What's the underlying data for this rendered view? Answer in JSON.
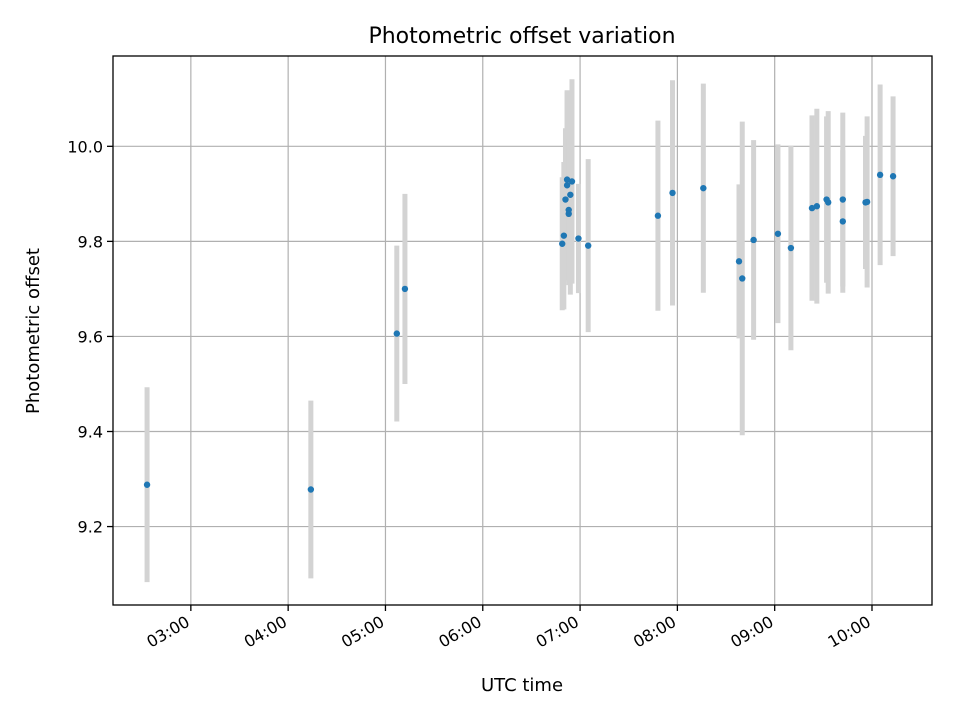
{
  "chart_data": {
    "type": "scatter",
    "title": "Photometric offset variation",
    "xlabel": "UTC time",
    "ylabel": "Photometric offset",
    "x_axis_type": "time",
    "xlim": [
      "02:12",
      "10:37"
    ],
    "ylim": [
      9.035,
      10.19
    ],
    "xticks": [
      "03:00",
      "04:00",
      "05:00",
      "06:00",
      "07:00",
      "08:00",
      "09:00",
      "10:00"
    ],
    "yticks": [
      9.2,
      9.4,
      9.6,
      9.8,
      10.0
    ],
    "ytick_labels": [
      "9.2",
      "9.4",
      "9.6",
      "9.8",
      "10.0"
    ],
    "grid": true,
    "point_color": "#1f77b4",
    "errorbar_color": "#d3d3d3",
    "points": [
      {
        "x": "02:33",
        "y": 9.288,
        "err": 0.205
      },
      {
        "x": "04:14",
        "y": 9.278,
        "err": 0.187
      },
      {
        "x": "05:07",
        "y": 9.606,
        "err": 0.185
      },
      {
        "x": "05:12",
        "y": 9.7,
        "err": 0.2
      },
      {
        "x": "06:49",
        "y": 9.795,
        "err": 0.14
      },
      {
        "x": "06:50",
        "y": 9.812,
        "err": 0.155
      },
      {
        "x": "06:51",
        "y": 9.888,
        "err": 0.15
      },
      {
        "x": "06:52",
        "y": 9.93,
        "err": 0.185
      },
      {
        "x": "06:52",
        "y": 9.918,
        "err": 0.2
      },
      {
        "x": "06:53",
        "y": 9.858,
        "err": 0.15
      },
      {
        "x": "06:53",
        "y": 9.866,
        "err": 0.15
      },
      {
        "x": "06:54",
        "y": 9.898,
        "err": 0.21
      },
      {
        "x": "06:55",
        "y": 9.926,
        "err": 0.215
      },
      {
        "x": "06:59",
        "y": 9.806,
        "err": 0.115
      },
      {
        "x": "07:05",
        "y": 9.791,
        "err": 0.182
      },
      {
        "x": "07:48",
        "y": 9.854,
        "err": 0.2
      },
      {
        "x": "07:57",
        "y": 9.902,
        "err": 0.237
      },
      {
        "x": "08:16",
        "y": 9.912,
        "err": 0.22
      },
      {
        "x": "08:38",
        "y": 9.758,
        "err": 0.162
      },
      {
        "x": "08:40",
        "y": 9.722,
        "err": 0.33
      },
      {
        "x": "08:47",
        "y": 9.803,
        "err": 0.21
      },
      {
        "x": "09:02",
        "y": 9.816,
        "err": 0.188
      },
      {
        "x": "09:10",
        "y": 9.786,
        "err": 0.215
      },
      {
        "x": "09:23",
        "y": 9.87,
        "err": 0.195
      },
      {
        "x": "09:26",
        "y": 9.874,
        "err": 0.205
      },
      {
        "x": "09:32",
        "y": 9.888,
        "err": 0.175
      },
      {
        "x": "09:33",
        "y": 9.882,
        "err": 0.192
      },
      {
        "x": "09:42",
        "y": 9.842,
        "err": 0.15
      },
      {
        "x": "09:42",
        "y": 9.888,
        "err": 0.183
      },
      {
        "x": "09:56",
        "y": 9.882,
        "err": 0.14
      },
      {
        "x": "09:57",
        "y": 9.883,
        "err": 0.18
      },
      {
        "x": "10:05",
        "y": 9.94,
        "err": 0.19
      },
      {
        "x": "10:13",
        "y": 9.937,
        "err": 0.168
      }
    ]
  }
}
